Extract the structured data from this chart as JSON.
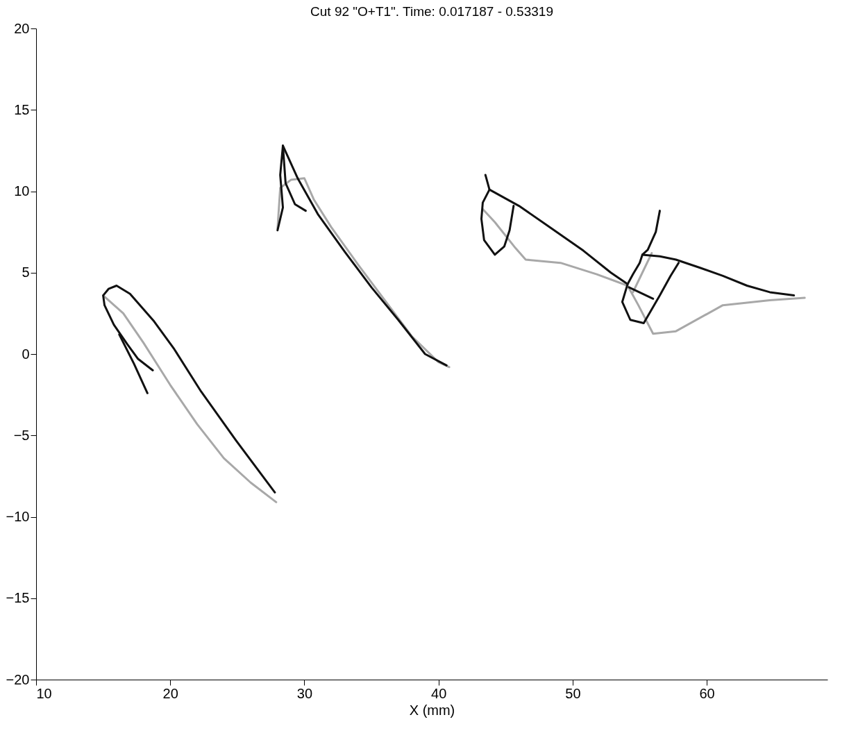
{
  "chart_data": {
    "type": "line",
    "title": "Cut 92 \"O+T1\". Time: 0.017187 - 0.53319",
    "xlabel": "X (mm)",
    "xlim": [
      10,
      69
    ],
    "xticks": [
      10,
      20,
      30,
      40,
      50,
      60
    ],
    "ylim": [
      -20,
      20
    ],
    "yticks": [
      -20,
      -15,
      -10,
      -5,
      0,
      5,
      10,
      15,
      20
    ],
    "grid": false,
    "legend": false,
    "marker": "none",
    "line_style": "solid",
    "series": [
      {
        "color": "#a8a8a8",
        "x": [
          15.0,
          16.5,
          18.0,
          20.0,
          22.0,
          24.0,
          26.0,
          27.9
        ],
        "values": [
          3.6,
          2.5,
          0.7,
          -1.9,
          -4.3,
          -6.4,
          -7.9,
          -9.1
        ]
      },
      {
        "color": "#111111",
        "x": [
          18.7,
          17.6,
          16.8,
          15.8,
          15.1,
          15.0,
          15.4,
          16.0,
          17.0,
          18.8,
          20.3,
          22.3,
          24.9,
          27.8
        ],
        "values": [
          -1.0,
          -0.3,
          0.6,
          1.8,
          3.0,
          3.6,
          4.0,
          4.2,
          3.7,
          2.0,
          0.3,
          -2.3,
          -5.3,
          -8.5
        ]
      },
      {
        "color": "#111111",
        "x": [
          16.2,
          17.3,
          18.3
        ],
        "values": [
          1.2,
          -0.6,
          -2.4
        ]
      },
      {
        "color": "#a8a8a8",
        "x": [
          28.0,
          28.2,
          29.0,
          30.0,
          30.7,
          32.0,
          34.0,
          36.0,
          38.0,
          40.0,
          40.8
        ],
        "values": [
          7.7,
          10.2,
          10.7,
          10.8,
          9.5,
          7.8,
          5.5,
          3.3,
          1.1,
          -0.5,
          -0.8
        ]
      },
      {
        "color": "#111111",
        "x": [
          28.0,
          28.4,
          28.2,
          28.4,
          28.6,
          29.3,
          30.1
        ],
        "values": [
          7.6,
          9.0,
          11.0,
          12.8,
          10.5,
          9.2,
          8.8
        ]
      },
      {
        "color": "#111111",
        "x": [
          28.4,
          29.5,
          31.0,
          33.0,
          35.0,
          37.0,
          39.0,
          40.6
        ],
        "values": [
          12.8,
          10.8,
          8.6,
          6.3,
          4.1,
          2.1,
          0.0,
          -0.7
        ]
      },
      {
        "color": "#a8a8a8",
        "x": [
          43.3,
          44.2,
          45.75,
          46.5,
          49.1,
          51.8,
          54.1,
          54.9,
          56.0,
          57.7,
          61.2,
          64.7,
          67.3
        ],
        "values": [
          8.9,
          8.1,
          6.5,
          5.8,
          5.6,
          4.9,
          4.2,
          3.0,
          1.25,
          1.4,
          3.0,
          3.3,
          3.45
        ]
      },
      {
        "color": "#a8a8a8",
        "x": [
          54.5,
          55.2,
          55.9
        ],
        "values": [
          3.8,
          5.0,
          6.2
        ]
      },
      {
        "color": "#111111",
        "x": [
          43.5,
          43.8,
          43.3,
          43.2,
          43.4,
          44.2,
          44.9,
          45.3,
          45.6
        ],
        "values": [
          11.0,
          10.1,
          9.3,
          8.3,
          7.0,
          6.1,
          6.6,
          7.6,
          9.1
        ]
      },
      {
        "color": "#111111",
        "x": [
          43.8,
          46.0,
          48.2,
          50.8,
          52.85,
          54.1,
          53.7,
          54.3,
          55.3,
          56.5,
          57.3,
          57.9
        ],
        "values": [
          10.1,
          9.1,
          7.85,
          6.35,
          5.0,
          4.3,
          3.2,
          2.1,
          1.9,
          3.6,
          4.8,
          5.6
        ]
      },
      {
        "color": "#111111",
        "x": [
          56.5,
          56.2,
          55.6,
          55.2,
          55.0,
          54.5,
          54.1
        ],
        "values": [
          8.8,
          7.5,
          6.4,
          6.1,
          5.6,
          4.9,
          4.3
        ]
      },
      {
        "color": "#111111",
        "x": [
          55.2,
          56.5,
          57.7,
          59.5,
          61.2,
          63.0,
          64.7,
          66.5
        ],
        "values": [
          6.1,
          6.0,
          5.8,
          5.3,
          4.8,
          4.2,
          3.8,
          3.6
        ]
      },
      {
        "color": "#111111",
        "x": [
          54.2,
          56.0
        ],
        "values": [
          4.1,
          3.4
        ]
      }
    ]
  }
}
